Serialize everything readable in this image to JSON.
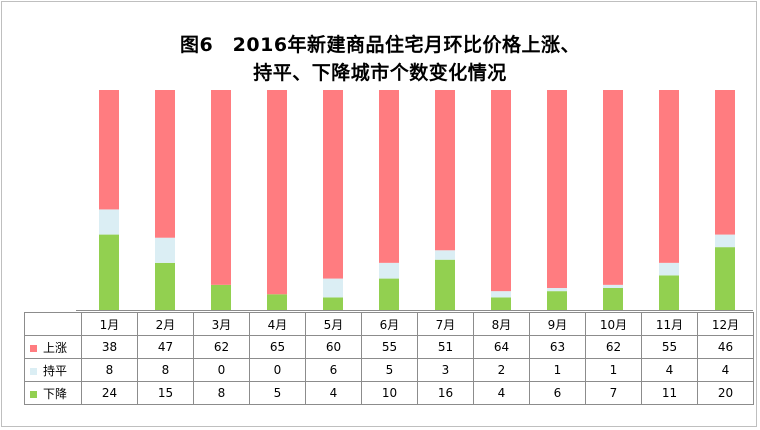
{
  "title_line1": "图6　2016年新建商品住宅月环比价格上涨、",
  "title_line2": "持平、下降城市个数变化情况",
  "chart_data": {
    "type": "bar",
    "stacked": true,
    "categories": [
      "1月",
      "2月",
      "3月",
      "4月",
      "5月",
      "6月",
      "7月",
      "8月",
      "9月",
      "10月",
      "11月",
      "12月"
    ],
    "series": [
      {
        "name": "上涨",
        "color": "#ff7c80",
        "values": [
          38,
          47,
          62,
          65,
          60,
          55,
          51,
          64,
          63,
          62,
          55,
          46
        ]
      },
      {
        "name": "持平",
        "color": "#dbeef4",
        "values": [
          8,
          8,
          0,
          0,
          6,
          5,
          3,
          2,
          1,
          1,
          4,
          4
        ]
      },
      {
        "name": "下降",
        "color": "#92d050",
        "values": [
          24,
          15,
          8,
          5,
          4,
          10,
          16,
          4,
          6,
          7,
          11,
          20
        ]
      }
    ],
    "ylim": [
      0,
      70
    ],
    "grid": false,
    "legend": "data-table-left"
  }
}
